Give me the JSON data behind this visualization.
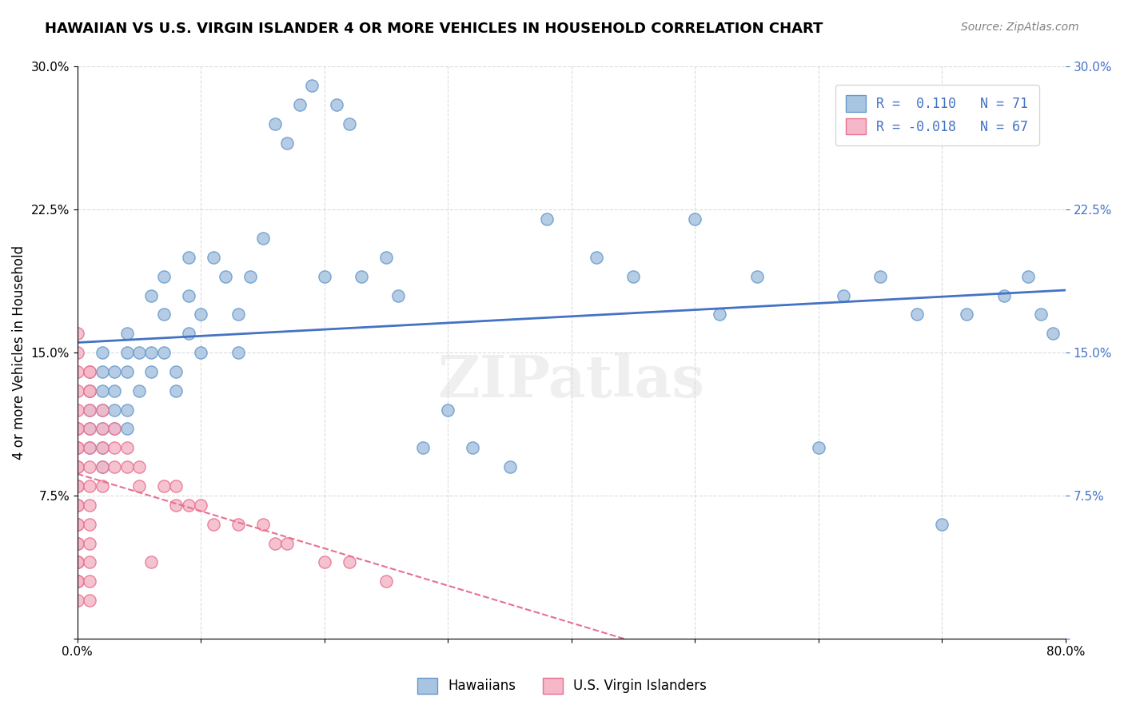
{
  "title": "HAWAIIAN VS U.S. VIRGIN ISLANDER 4 OR MORE VEHICLES IN HOUSEHOLD CORRELATION CHART",
  "source": "Source: ZipAtlas.com",
  "ylabel": "4 or more Vehicles in Household",
  "xlabel": "",
  "xlim": [
    0.0,
    0.8
  ],
  "ylim": [
    0.0,
    0.3
  ],
  "xticks": [
    0.0,
    0.1,
    0.2,
    0.3,
    0.4,
    0.5,
    0.6,
    0.7,
    0.8
  ],
  "xticklabels": [
    "0.0%",
    "",
    "",
    "",
    "",
    "",
    "",
    "",
    "80.0%"
  ],
  "yticks": [
    0.0,
    0.075,
    0.15,
    0.225,
    0.3
  ],
  "yticklabels": [
    "",
    "7.5%",
    "15.0%",
    "22.5%",
    "30.0%"
  ],
  "R_hawaiian": 0.11,
  "N_hawaiian": 71,
  "R_virgin": -0.018,
  "N_virgin": 67,
  "hawaiian_color": "#a8c4e0",
  "hawaiian_edge": "#6699cc",
  "virgin_color": "#f4b8c8",
  "virgin_edge": "#e87090",
  "trendline_hawaiian_color": "#4472c4",
  "trendline_virgin_color": "#e87090",
  "watermark": "ZIPatlas",
  "hawaiian_x": [
    0.01,
    0.01,
    0.01,
    0.01,
    0.02,
    0.02,
    0.02,
    0.02,
    0.02,
    0.02,
    0.02,
    0.03,
    0.03,
    0.03,
    0.03,
    0.04,
    0.04,
    0.04,
    0.04,
    0.04,
    0.05,
    0.05,
    0.06,
    0.06,
    0.06,
    0.07,
    0.07,
    0.07,
    0.08,
    0.08,
    0.09,
    0.09,
    0.09,
    0.1,
    0.1,
    0.11,
    0.12,
    0.13,
    0.13,
    0.14,
    0.15,
    0.16,
    0.17,
    0.18,
    0.19,
    0.2,
    0.21,
    0.22,
    0.23,
    0.25,
    0.26,
    0.28,
    0.3,
    0.32,
    0.35,
    0.38,
    0.42,
    0.45,
    0.5,
    0.52,
    0.55,
    0.6,
    0.62,
    0.65,
    0.68,
    0.7,
    0.72,
    0.75,
    0.77,
    0.78,
    0.79
  ],
  "hawaiian_y": [
    0.12,
    0.13,
    0.11,
    0.1,
    0.15,
    0.13,
    0.12,
    0.11,
    0.1,
    0.14,
    0.09,
    0.14,
    0.13,
    0.12,
    0.11,
    0.16,
    0.15,
    0.14,
    0.12,
    0.11,
    0.15,
    0.13,
    0.18,
    0.15,
    0.14,
    0.19,
    0.17,
    0.15,
    0.14,
    0.13,
    0.2,
    0.18,
    0.16,
    0.17,
    0.15,
    0.2,
    0.19,
    0.17,
    0.15,
    0.19,
    0.21,
    0.27,
    0.26,
    0.28,
    0.29,
    0.19,
    0.28,
    0.27,
    0.19,
    0.2,
    0.18,
    0.1,
    0.12,
    0.1,
    0.09,
    0.22,
    0.2,
    0.19,
    0.22,
    0.17,
    0.19,
    0.1,
    0.18,
    0.19,
    0.17,
    0.06,
    0.17,
    0.18,
    0.19,
    0.17,
    0.16
  ],
  "virgin_x": [
    0.0,
    0.0,
    0.0,
    0.0,
    0.0,
    0.0,
    0.0,
    0.0,
    0.0,
    0.0,
    0.0,
    0.0,
    0.0,
    0.0,
    0.0,
    0.0,
    0.0,
    0.0,
    0.0,
    0.0,
    0.0,
    0.0,
    0.0,
    0.0,
    0.0,
    0.0,
    0.01,
    0.01,
    0.01,
    0.01,
    0.01,
    0.01,
    0.01,
    0.01,
    0.01,
    0.01,
    0.01,
    0.01,
    0.01,
    0.01,
    0.01,
    0.02,
    0.02,
    0.02,
    0.02,
    0.02,
    0.03,
    0.03,
    0.03,
    0.04,
    0.04,
    0.05,
    0.05,
    0.06,
    0.07,
    0.08,
    0.08,
    0.09,
    0.1,
    0.11,
    0.13,
    0.15,
    0.16,
    0.17,
    0.2,
    0.22,
    0.25
  ],
  "virgin_y": [
    0.03,
    0.04,
    0.05,
    0.06,
    0.07,
    0.08,
    0.09,
    0.1,
    0.11,
    0.12,
    0.03,
    0.04,
    0.05,
    0.06,
    0.07,
    0.08,
    0.13,
    0.09,
    0.1,
    0.11,
    0.14,
    0.15,
    0.16,
    0.03,
    0.04,
    0.02,
    0.14,
    0.13,
    0.12,
    0.11,
    0.1,
    0.09,
    0.08,
    0.07,
    0.06,
    0.05,
    0.04,
    0.03,
    0.02,
    0.13,
    0.14,
    0.12,
    0.11,
    0.1,
    0.09,
    0.08,
    0.11,
    0.1,
    0.09,
    0.1,
    0.09,
    0.09,
    0.08,
    0.04,
    0.08,
    0.08,
    0.07,
    0.07,
    0.07,
    0.06,
    0.06,
    0.06,
    0.05,
    0.05,
    0.04,
    0.04,
    0.03
  ]
}
